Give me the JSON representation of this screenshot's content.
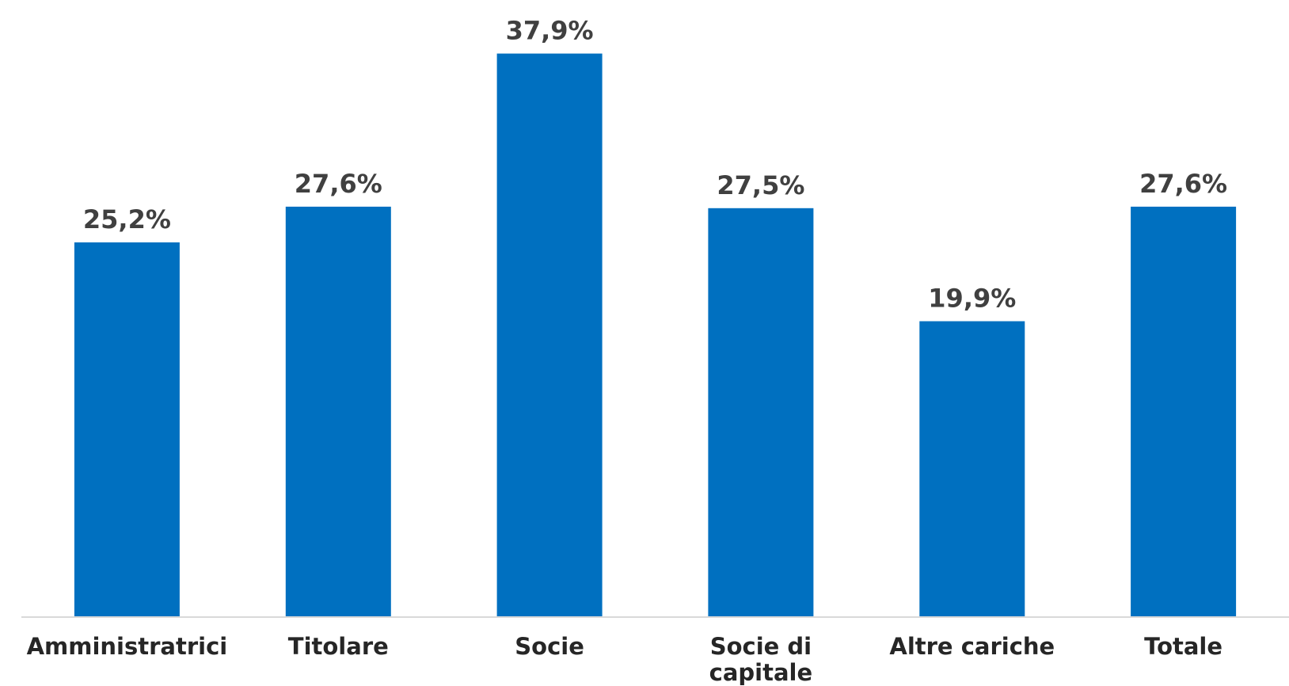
{
  "chart_data": {
    "type": "bar",
    "categories": [
      [
        "Amministratrici"
      ],
      [
        "Titolare"
      ],
      [
        "Socie"
      ],
      [
        "Socie di",
        "capitale"
      ],
      [
        "Altre cariche"
      ],
      [
        "Totale"
      ]
    ],
    "values": [
      25.2,
      27.6,
      37.9,
      27.5,
      19.9,
      27.6
    ],
    "data_labels": [
      "25,2%",
      "27,6%",
      "37,9%",
      "27,5%",
      "19,9%",
      "27,6%"
    ],
    "ylim": [
      0,
      40
    ],
    "grid": false,
    "legend": "none",
    "title": "",
    "xlabel": "",
    "ylabel": "",
    "colors": {
      "bar": "#0070C0",
      "axis": "#D9D9D9",
      "label": "#404040"
    }
  }
}
